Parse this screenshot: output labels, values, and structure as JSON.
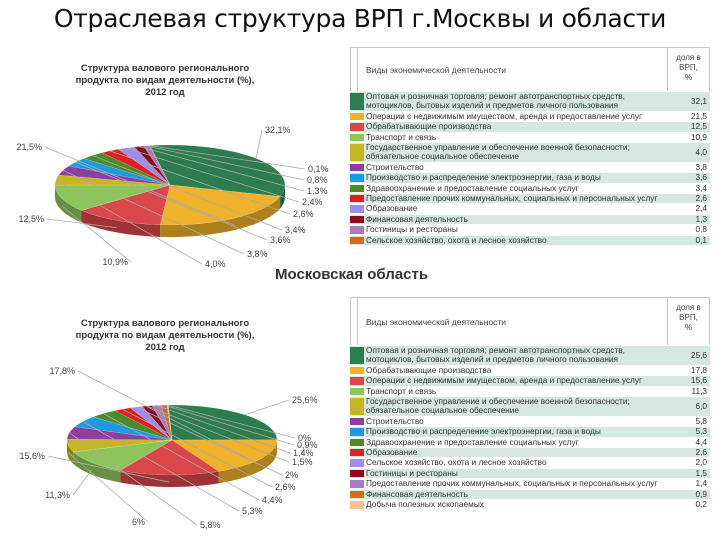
{
  "slide": {
    "title": "Отраслевая структура ВРП г.Москвы и области"
  },
  "moscow": {
    "chart_title": [
      "Структура валового регионального",
      "продукта по видам деятельности (%),",
      "2012 год"
    ],
    "table": {
      "header_name": "Виды экономической деятельности",
      "header_value": [
        "доля в",
        "ВРП,",
        "%"
      ],
      "rows": [
        {
          "name": "Оптовая и розничная торговля; ремонт автотранспортных средств, мотоциклов, бытовых изделий и предметов личного пользования",
          "value": "32,1",
          "color": "#2e7d4f"
        },
        {
          "name": "Операции с недвижимым имуществом, аренда и предоставление услуг",
          "value": "21,5",
          "color": "#f0b22a"
        },
        {
          "name": "Обрабатывающие производства",
          "value": "12,5",
          "color": "#d9474b"
        },
        {
          "name": "Транспорт и связь",
          "value": "10,9",
          "color": "#8cc65a"
        },
        {
          "name": "Государственное управление и обеспечение военной безопасности; обязательное социальное обеспечение",
          "value": "4,0",
          "color": "#c6b524"
        },
        {
          "name": "Строительство",
          "value": "3,8",
          "color": "#8e3e9e"
        },
        {
          "name": "Производство и распределение электроэнергии, газа и воды",
          "value": "3,6",
          "color": "#1e9be0"
        },
        {
          "name": "Здравоохранение и предоставление социальных услуг",
          "value": "3,4",
          "color": "#4a8c2a"
        },
        {
          "name": "Предоставление прочих коммунальных, социальных и персональных услуг",
          "value": "2,6",
          "color": "#e31e1e"
        },
        {
          "name": "Образование",
          "value": "2,4",
          "color": "#9a90e8"
        },
        {
          "name": "Финансовая деятельность",
          "value": "1,3",
          "color": "#8b0c1c"
        },
        {
          "name": "Гостиницы и рестораны",
          "value": "0,8",
          "color": "#a77cc0"
        },
        {
          "name": "Сельское хозяйство, охота и лесное хозяйство",
          "value": "0,1",
          "color": "#d66a18"
        }
      ]
    }
  },
  "region_heading": "Московская область",
  "oblast": {
    "chart_title": [
      "Структура валового регионального",
      "продукта по видам деятельности (%),",
      "2012 год"
    ],
    "table": {
      "header_name": "Виды экономической деятельности",
      "header_value": [
        "доля в",
        "ВРП,",
        "%"
      ],
      "rows": [
        {
          "name": "Оптовая и розничная торговля; ремонт автотранспортных средств, мотоциклов, бытовых изделий и предметов личного пользования",
          "value": "25,6",
          "color": "#2e7d4f"
        },
        {
          "name": "Обрабатывающие производства",
          "value": "17,8",
          "color": "#f0b22a"
        },
        {
          "name": "Операции с недвижимым имуществом, аренда и предоставление услуг",
          "value": "15,6",
          "color": "#d9474b"
        },
        {
          "name": "Транспорт и связь",
          "value": "11,3",
          "color": "#8cc65a"
        },
        {
          "name": "Государственное управление и обеспечение военной безопасности; обязательное социальное обеспечение",
          "value": "6,0",
          "color": "#c6b524"
        },
        {
          "name": "Строительство",
          "value": "5,8",
          "color": "#8e3e9e"
        },
        {
          "name": "Производство и распределение электроэнергии, газа и воды",
          "value": "5,3",
          "color": "#1e9be0"
        },
        {
          "name": "Здравоохранение и предоставление социальных услуг",
          "value": "4,4",
          "color": "#4a8c2a"
        },
        {
          "name": "Образование",
          "value": "2,6",
          "color": "#e31e1e"
        },
        {
          "name": "Сельское хозяйство, охота и лесное хозяйство",
          "value": "2,0",
          "color": "#9a90e8"
        },
        {
          "name": "Гостиницы и рестораны",
          "value": "1,5",
          "color": "#8b0c1c"
        },
        {
          "name": "Предоставление прочих коммунальных, социальных и персональных услуг",
          "value": "1,4",
          "color": "#a77cc0"
        },
        {
          "name": "Финансовая деятельность",
          "value": "0,9",
          "color": "#d66a18"
        },
        {
          "name": "Добыча полезных ископаемых",
          "value": "0,2",
          "color": "#f5c48a"
        }
      ]
    }
  },
  "chart_data": [
    {
      "type": "pie",
      "title": "Структура валового регионального продукта по видам деятельности (%), 2012 год — г. Москва",
      "categories": [
        "Оптовая и розничная торговля",
        "Операции с недвижимым имуществом",
        "Обрабатывающие производства",
        "Транспорт и связь",
        "Гос. управление",
        "Строительство",
        "Электроэнергия, газ, вода",
        "Здравоохранение",
        "Прочие услуги",
        "Образование",
        "Финансовая деятельность",
        "Гостиницы и рестораны",
        "Сельское хозяйство"
      ],
      "values": [
        32.1,
        21.5,
        12.5,
        10.9,
        4.0,
        3.8,
        3.6,
        3.4,
        2.6,
        2.4,
        1.3,
        0.8,
        0.1
      ],
      "labels": [
        "32,1%",
        "21,5%",
        "12,5%",
        "10,9%",
        "4,0%",
        "3,8%",
        "3,6%",
        "3,4%",
        "2,6%",
        "2,4%",
        "1,3%",
        "0,8%",
        "0,1%"
      ],
      "colors": [
        "#2e7d4f",
        "#f0b22a",
        "#d9474b",
        "#8cc65a",
        "#c6b524",
        "#8e3e9e",
        "#1e9be0",
        "#4a8c2a",
        "#e31e1e",
        "#9a90e8",
        "#8b0c1c",
        "#a77cc0",
        "#d66a18"
      ]
    },
    {
      "type": "pie",
      "title": "Структура валового регионального продукта по видам деятельности (%), 2012 год — Московская область",
      "categories": [
        "Оптовая и розничная торговля",
        "Обрабатывающие производства",
        "Операции с недвижимым имуществом",
        "Транспорт и связь",
        "Гос. управление",
        "Строительство",
        "Электроэнергия, газ, вода",
        "Здравоохранение",
        "Образование",
        "Сельское хозяйство",
        "Гостиницы и рестораны",
        "Прочие услуги",
        "Финансовая деятельность",
        "Добыча полезных ископаемых"
      ],
      "values": [
        25.6,
        17.8,
        15.6,
        11.3,
        6.0,
        5.8,
        5.3,
        4.4,
        2.6,
        2.0,
        1.5,
        1.4,
        0.9,
        0.2
      ],
      "labels": [
        "25,6%",
        "17,8%",
        "15,6%",
        "11,3%",
        "6%",
        "5,8%",
        "5,3%",
        "4,4%",
        "2,6%",
        "2%",
        "1,5%",
        "1,4%",
        "0,9%",
        "0%"
      ],
      "colors": [
        "#2e7d4f",
        "#f0b22a",
        "#d9474b",
        "#8cc65a",
        "#c6b524",
        "#8e3e9e",
        "#1e9be0",
        "#4a8c2a",
        "#e31e1e",
        "#9a90e8",
        "#8b0c1c",
        "#a77cc0",
        "#d66a18",
        "#f5c48a"
      ]
    }
  ]
}
